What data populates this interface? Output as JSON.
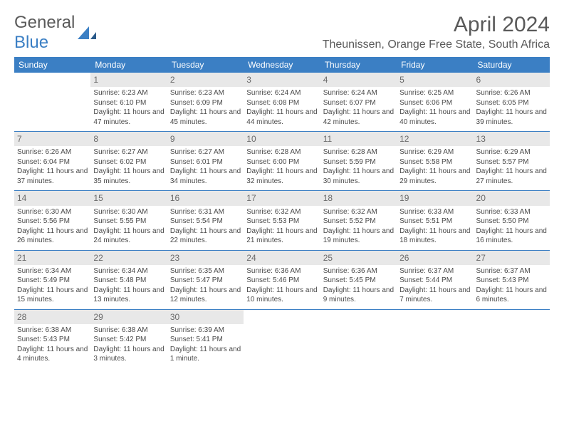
{
  "logo": {
    "text_a": "General",
    "text_b": "Blue"
  },
  "title": "April 2024",
  "location": "Theunissen, Orange Free State, South Africa",
  "colors": {
    "accent": "#3b7fc4",
    "daynum_bg": "#e8e8e8",
    "text": "#5a5a5a"
  },
  "day_of_week": [
    "Sunday",
    "Monday",
    "Tuesday",
    "Wednesday",
    "Thursday",
    "Friday",
    "Saturday"
  ],
  "weeks": [
    [
      {
        "n": "",
        "sr": "",
        "ss": "",
        "dl": ""
      },
      {
        "n": "1",
        "sr": "Sunrise: 6:23 AM",
        "ss": "Sunset: 6:10 PM",
        "dl": "Daylight: 11 hours and 47 minutes."
      },
      {
        "n": "2",
        "sr": "Sunrise: 6:23 AM",
        "ss": "Sunset: 6:09 PM",
        "dl": "Daylight: 11 hours and 45 minutes."
      },
      {
        "n": "3",
        "sr": "Sunrise: 6:24 AM",
        "ss": "Sunset: 6:08 PM",
        "dl": "Daylight: 11 hours and 44 minutes."
      },
      {
        "n": "4",
        "sr": "Sunrise: 6:24 AM",
        "ss": "Sunset: 6:07 PM",
        "dl": "Daylight: 11 hours and 42 minutes."
      },
      {
        "n": "5",
        "sr": "Sunrise: 6:25 AM",
        "ss": "Sunset: 6:06 PM",
        "dl": "Daylight: 11 hours and 40 minutes."
      },
      {
        "n": "6",
        "sr": "Sunrise: 6:26 AM",
        "ss": "Sunset: 6:05 PM",
        "dl": "Daylight: 11 hours and 39 minutes."
      }
    ],
    [
      {
        "n": "7",
        "sr": "Sunrise: 6:26 AM",
        "ss": "Sunset: 6:04 PM",
        "dl": "Daylight: 11 hours and 37 minutes."
      },
      {
        "n": "8",
        "sr": "Sunrise: 6:27 AM",
        "ss": "Sunset: 6:02 PM",
        "dl": "Daylight: 11 hours and 35 minutes."
      },
      {
        "n": "9",
        "sr": "Sunrise: 6:27 AM",
        "ss": "Sunset: 6:01 PM",
        "dl": "Daylight: 11 hours and 34 minutes."
      },
      {
        "n": "10",
        "sr": "Sunrise: 6:28 AM",
        "ss": "Sunset: 6:00 PM",
        "dl": "Daylight: 11 hours and 32 minutes."
      },
      {
        "n": "11",
        "sr": "Sunrise: 6:28 AM",
        "ss": "Sunset: 5:59 PM",
        "dl": "Daylight: 11 hours and 30 minutes."
      },
      {
        "n": "12",
        "sr": "Sunrise: 6:29 AM",
        "ss": "Sunset: 5:58 PM",
        "dl": "Daylight: 11 hours and 29 minutes."
      },
      {
        "n": "13",
        "sr": "Sunrise: 6:29 AM",
        "ss": "Sunset: 5:57 PM",
        "dl": "Daylight: 11 hours and 27 minutes."
      }
    ],
    [
      {
        "n": "14",
        "sr": "Sunrise: 6:30 AM",
        "ss": "Sunset: 5:56 PM",
        "dl": "Daylight: 11 hours and 26 minutes."
      },
      {
        "n": "15",
        "sr": "Sunrise: 6:30 AM",
        "ss": "Sunset: 5:55 PM",
        "dl": "Daylight: 11 hours and 24 minutes."
      },
      {
        "n": "16",
        "sr": "Sunrise: 6:31 AM",
        "ss": "Sunset: 5:54 PM",
        "dl": "Daylight: 11 hours and 22 minutes."
      },
      {
        "n": "17",
        "sr": "Sunrise: 6:32 AM",
        "ss": "Sunset: 5:53 PM",
        "dl": "Daylight: 11 hours and 21 minutes."
      },
      {
        "n": "18",
        "sr": "Sunrise: 6:32 AM",
        "ss": "Sunset: 5:52 PM",
        "dl": "Daylight: 11 hours and 19 minutes."
      },
      {
        "n": "19",
        "sr": "Sunrise: 6:33 AM",
        "ss": "Sunset: 5:51 PM",
        "dl": "Daylight: 11 hours and 18 minutes."
      },
      {
        "n": "20",
        "sr": "Sunrise: 6:33 AM",
        "ss": "Sunset: 5:50 PM",
        "dl": "Daylight: 11 hours and 16 minutes."
      }
    ],
    [
      {
        "n": "21",
        "sr": "Sunrise: 6:34 AM",
        "ss": "Sunset: 5:49 PM",
        "dl": "Daylight: 11 hours and 15 minutes."
      },
      {
        "n": "22",
        "sr": "Sunrise: 6:34 AM",
        "ss": "Sunset: 5:48 PM",
        "dl": "Daylight: 11 hours and 13 minutes."
      },
      {
        "n": "23",
        "sr": "Sunrise: 6:35 AM",
        "ss": "Sunset: 5:47 PM",
        "dl": "Daylight: 11 hours and 12 minutes."
      },
      {
        "n": "24",
        "sr": "Sunrise: 6:36 AM",
        "ss": "Sunset: 5:46 PM",
        "dl": "Daylight: 11 hours and 10 minutes."
      },
      {
        "n": "25",
        "sr": "Sunrise: 6:36 AM",
        "ss": "Sunset: 5:45 PM",
        "dl": "Daylight: 11 hours and 9 minutes."
      },
      {
        "n": "26",
        "sr": "Sunrise: 6:37 AM",
        "ss": "Sunset: 5:44 PM",
        "dl": "Daylight: 11 hours and 7 minutes."
      },
      {
        "n": "27",
        "sr": "Sunrise: 6:37 AM",
        "ss": "Sunset: 5:43 PM",
        "dl": "Daylight: 11 hours and 6 minutes."
      }
    ],
    [
      {
        "n": "28",
        "sr": "Sunrise: 6:38 AM",
        "ss": "Sunset: 5:43 PM",
        "dl": "Daylight: 11 hours and 4 minutes."
      },
      {
        "n": "29",
        "sr": "Sunrise: 6:38 AM",
        "ss": "Sunset: 5:42 PM",
        "dl": "Daylight: 11 hours and 3 minutes."
      },
      {
        "n": "30",
        "sr": "Sunrise: 6:39 AM",
        "ss": "Sunset: 5:41 PM",
        "dl": "Daylight: 11 hours and 1 minute."
      },
      {
        "n": "",
        "sr": "",
        "ss": "",
        "dl": ""
      },
      {
        "n": "",
        "sr": "",
        "ss": "",
        "dl": ""
      },
      {
        "n": "",
        "sr": "",
        "ss": "",
        "dl": ""
      },
      {
        "n": "",
        "sr": "",
        "ss": "",
        "dl": ""
      }
    ]
  ]
}
